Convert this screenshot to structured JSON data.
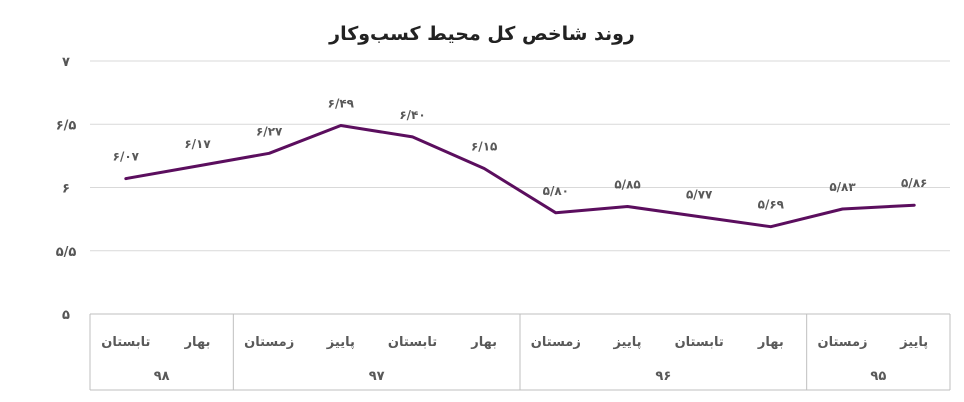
{
  "chart_data": {
    "type": "line",
    "title": "روند شاخص کل محیط کسب‌وکار",
    "ylim": [
      5,
      7
    ],
    "yticks": [
      5,
      5.5,
      6,
      6.5,
      7
    ],
    "ytick_labels": [
      "۵",
      "۵/۵",
      "۶",
      "۶/۵",
      "۷"
    ],
    "grid": true,
    "legend": "none",
    "line_color": "#5b0e5e",
    "categories": [
      {
        "season": "پاییز",
        "year": "۹۵"
      },
      {
        "season": "زمستان",
        "year": "۹۵"
      },
      {
        "season": "بهار",
        "year": "۹۶"
      },
      {
        "season": "تابستان",
        "year": "۹۶"
      },
      {
        "season": "پاییز",
        "year": "۹۶"
      },
      {
        "season": "زمستان",
        "year": "۹۶"
      },
      {
        "season": "بهار",
        "year": "۹۷"
      },
      {
        "season": "تابستان",
        "year": "۹۷"
      },
      {
        "season": "پاییز",
        "year": "۹۷"
      },
      {
        "season": "زمستان",
        "year": "۹۷"
      },
      {
        "season": "بهار",
        "year": "۹۸"
      },
      {
        "season": "تابستان",
        "year": "۹۸"
      }
    ],
    "year_groups": [
      {
        "label": "۹۵",
        "count": 2
      },
      {
        "label": "۹۶",
        "count": 4
      },
      {
        "label": "۹۷",
        "count": 4
      },
      {
        "label": "۹۸",
        "count": 2
      }
    ],
    "values": [
      5.86,
      5.83,
      5.69,
      5.77,
      5.85,
      5.8,
      6.15,
      6.4,
      6.49,
      6.27,
      6.17,
      6.07
    ],
    "value_labels": [
      "۵/۸۶",
      "۵/۸۳",
      "۵/۶۹",
      "۵/۷۷",
      "۵/۸۵",
      "۵/۸۰",
      "۶/۱۵",
      "۶/۴۰",
      "۶/۴۹",
      "۶/۲۷",
      "۶/۱۷",
      "۶/۰۷"
    ]
  }
}
